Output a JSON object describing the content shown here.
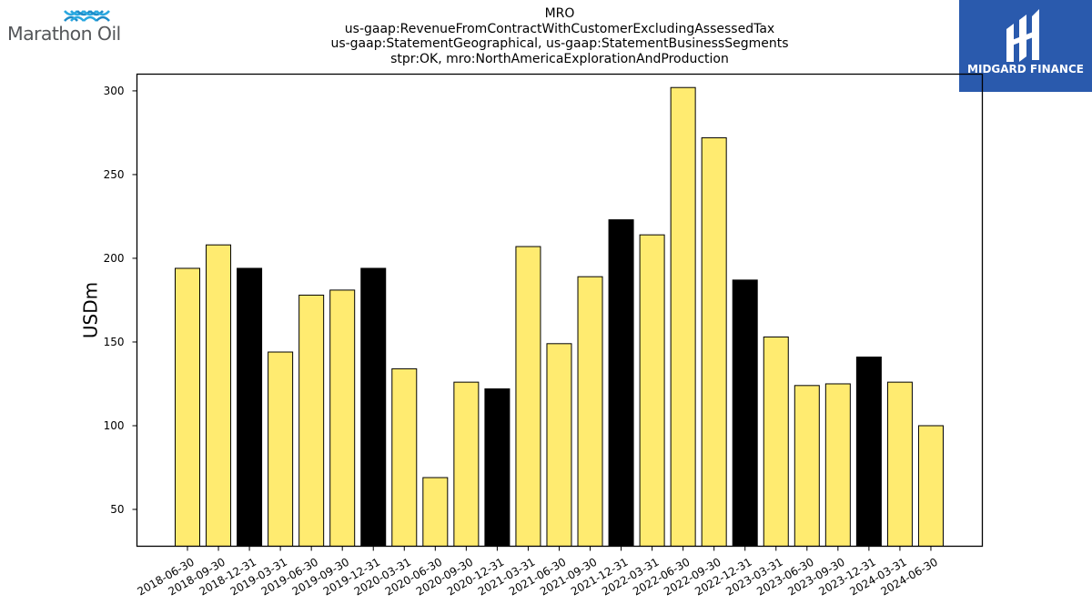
{
  "company_logo": {
    "name": "Marathon Oil",
    "mark_color": "#2aa8e0",
    "text_color": "#55575a"
  },
  "publisher_logo": {
    "name": "MIDGARD FINANCE",
    "background": "#2a5aad",
    "text_color": "#ffffff"
  },
  "chart_data": {
    "type": "bar",
    "title": [
      "MRO",
      "us-gaap:RevenueFromContractWithCustomerExcludingAssessedTax",
      "us-gaap:StatementGeographical, us-gaap:StatementBusinessSegments",
      "stpr:OK, mro:NorthAmericaExplorationAndProduction"
    ],
    "xlabel": "",
    "ylabel": "USDm",
    "ylim": [
      28,
      310
    ],
    "yticks": [
      50,
      100,
      150,
      200,
      250,
      300
    ],
    "grid": false,
    "legend": "none",
    "colors": {
      "quarter": "#ffeb70",
      "year_end": "#000000",
      "edge": "#000000"
    },
    "categories": [
      "2018-06-30",
      "2018-09-30",
      "2018-12-31",
      "2019-03-31",
      "2019-06-30",
      "2019-09-30",
      "2019-12-31",
      "2020-03-31",
      "2020-06-30",
      "2020-09-30",
      "2020-12-31",
      "2021-03-31",
      "2021-06-30",
      "2021-09-30",
      "2021-12-31",
      "2022-03-31",
      "2022-06-30",
      "2022-09-30",
      "2022-12-31",
      "2023-03-31",
      "2023-06-30",
      "2023-09-30",
      "2023-12-31",
      "2024-03-31",
      "2024-06-30"
    ],
    "values": [
      194,
      208,
      194,
      144,
      178,
      181,
      194,
      134,
      69,
      126,
      122,
      207,
      149,
      189,
      223,
      214,
      302,
      272,
      187,
      153,
      124,
      125,
      141,
      126,
      100
    ],
    "year_end": [
      false,
      false,
      true,
      false,
      false,
      false,
      true,
      false,
      false,
      false,
      true,
      false,
      false,
      false,
      true,
      false,
      false,
      false,
      true,
      false,
      false,
      false,
      true,
      false,
      false
    ]
  }
}
